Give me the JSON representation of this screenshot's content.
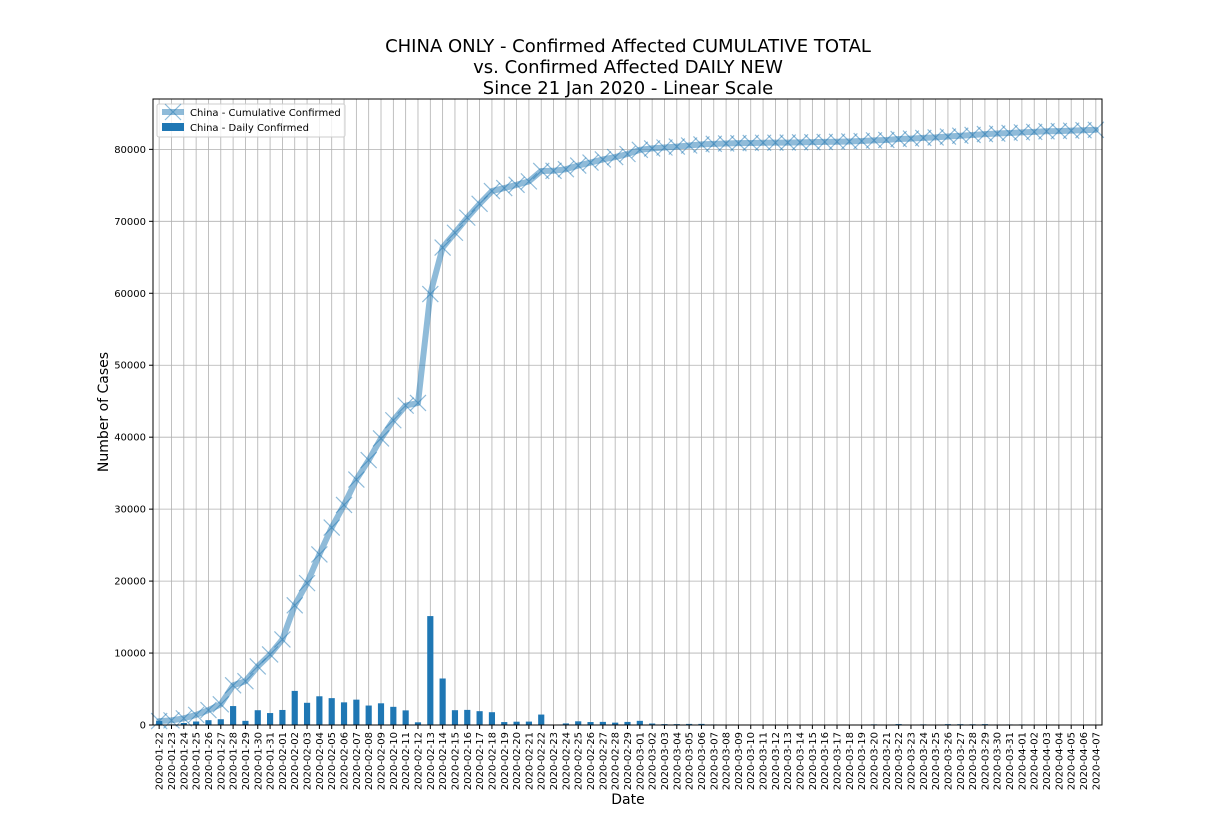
{
  "chart_data": {
    "type": "bar+line",
    "title_lines": [
      "CHINA ONLY - Confirmed Affected CUMULATIVE TOTAL",
      "vs. Confirmed Affected DAILY NEW",
      "Since 21 Jan 2020 - Linear Scale"
    ],
    "xlabel": "Date",
    "ylabel": "Number of Cases",
    "ylim": [
      0,
      87000
    ],
    "yticks": [
      0,
      10000,
      20000,
      30000,
      40000,
      50000,
      60000,
      70000,
      80000
    ],
    "grid": true,
    "legend_position": "top-left",
    "categories": [
      "2020-01-22",
      "2020-01-23",
      "2020-01-24",
      "2020-01-25",
      "2020-01-26",
      "2020-01-27",
      "2020-01-28",
      "2020-01-29",
      "2020-01-30",
      "2020-01-31",
      "2020-02-01",
      "2020-02-02",
      "2020-02-03",
      "2020-02-04",
      "2020-02-05",
      "2020-02-06",
      "2020-02-07",
      "2020-02-08",
      "2020-02-09",
      "2020-02-10",
      "2020-02-11",
      "2020-02-12",
      "2020-02-13",
      "2020-02-14",
      "2020-02-15",
      "2020-02-16",
      "2020-02-17",
      "2020-02-18",
      "2020-02-19",
      "2020-02-20",
      "2020-02-21",
      "2020-02-22",
      "2020-02-23",
      "2020-02-24",
      "2020-02-25",
      "2020-02-26",
      "2020-02-27",
      "2020-02-28",
      "2020-02-29",
      "2020-03-01",
      "2020-03-02",
      "2020-03-03",
      "2020-03-04",
      "2020-03-05",
      "2020-03-06",
      "2020-03-07",
      "2020-03-08",
      "2020-03-09",
      "2020-03-10",
      "2020-03-11",
      "2020-03-12",
      "2020-03-13",
      "2020-03-14",
      "2020-03-15",
      "2020-03-16",
      "2020-03-17",
      "2020-03-18",
      "2020-03-19",
      "2020-03-20",
      "2020-03-21",
      "2020-03-22",
      "2020-03-23",
      "2020-03-24",
      "2020-03-25",
      "2020-03-26",
      "2020-03-27",
      "2020-03-28",
      "2020-03-29",
      "2020-03-30",
      "2020-03-31",
      "2020-04-01",
      "2020-04-02",
      "2020-04-03",
      "2020-04-04",
      "2020-04-05",
      "2020-04-06",
      "2020-04-07"
    ],
    "series": [
      {
        "name": "China - Cumulative Confirmed",
        "kind": "line",
        "color": "#1f77b4",
        "opacity": 0.5,
        "marker": "x",
        "values": [
          548,
          643,
          920,
          1406,
          2075,
          2877,
          5509,
          6087,
          8141,
          9802,
          11891,
          16630,
          19716,
          23707,
          27440,
          30587,
          34110,
          36814,
          39829,
          42354,
          44386,
          44759,
          59895,
          66358,
          68413,
          70513,
          72434,
          74211,
          74619,
          75077,
          75550,
          77001,
          77022,
          77241,
          77754,
          78166,
          78600,
          78928,
          79356,
          79932,
          80136,
          80261,
          80386,
          80537,
          80690,
          80770,
          80823,
          80860,
          80887,
          80921,
          80932,
          80945,
          80977,
          81003,
          81033,
          81058,
          81102,
          81156,
          81250,
          81305,
          81435,
          81498,
          81591,
          81661,
          81782,
          81897,
          81999,
          82122,
          82198,
          82279,
          82361,
          82432,
          82511,
          82543,
          82602,
          82665,
          82718
        ]
      },
      {
        "name": "China - Daily Confirmed",
        "kind": "bar",
        "color": "#1f77b4",
        "values": [
          548,
          95,
          277,
          486,
          669,
          802,
          2632,
          578,
          2054,
          1661,
          2089,
          4739,
          3086,
          3991,
          3733,
          3147,
          3523,
          2704,
          3015,
          2525,
          2032,
          373,
          15136,
          6463,
          2055,
          2100,
          1921,
          1777,
          408,
          458,
          473,
          1451,
          21,
          219,
          513,
          412,
          434,
          328,
          428,
          576,
          204,
          125,
          125,
          151,
          153,
          80,
          53,
          37,
          27,
          34,
          11,
          13,
          32,
          26,
          30,
          25,
          44,
          54,
          94,
          55,
          130,
          63,
          93,
          70,
          121,
          115,
          102,
          123,
          76,
          81,
          82,
          71,
          79,
          32,
          59,
          63,
          53
        ]
      }
    ]
  }
}
